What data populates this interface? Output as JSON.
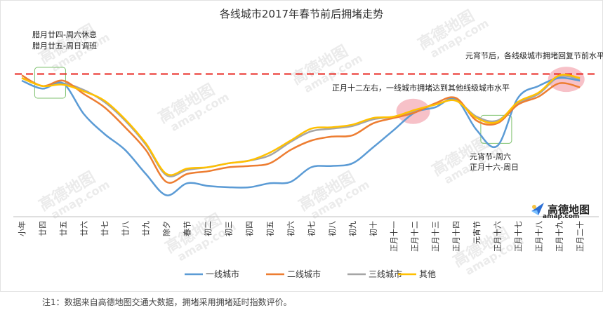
{
  "page": {
    "footnote": "注1：数据来自高德地图交通大数据，拥堵采用拥堵延时指数评价。",
    "logo_text": "高德地图",
    "logo_sub": "amap.com",
    "watermark": "高德地图",
    "watermark_sub": "amap.com"
  },
  "chart_data": {
    "type": "line",
    "title": "各线城市2017年春节前后拥堵走势",
    "xlabel": "",
    "ylabel": "",
    "ylim": [
      0,
      100
    ],
    "grid": false,
    "legend_position": "bottom",
    "categories": [
      "小年",
      "廿四",
      "廿五",
      "廿六",
      "廿七",
      "廿八",
      "廿九",
      "除夕",
      "春节",
      "初二",
      "初三",
      "初四",
      "初五",
      "初六",
      "初七",
      "初八",
      "初九",
      "初十",
      "正月十一",
      "正月十二",
      "正月十三",
      "正月十四",
      "元宵节",
      "正月十六",
      "正月十七",
      "正月十八",
      "正月十九",
      "正月二十"
    ],
    "reference_line": 95,
    "series": [
      {
        "name": "一线城市",
        "color": "#5b9bd5",
        "values": [
          90,
          84,
          88,
          65,
          50,
          38,
          20,
          4,
          13,
          11,
          10,
          10,
          13,
          14,
          25,
          26,
          28,
          40,
          53,
          66,
          70,
          76,
          53,
          41,
          77,
          86,
          92,
          90
        ]
      },
      {
        "name": "二线城市",
        "color": "#ed7d31",
        "values": [
          94,
          86,
          90,
          80,
          70,
          55,
          38,
          14,
          20,
          22,
          25,
          26,
          28,
          38,
          45,
          48,
          49,
          58,
          62,
          66,
          73,
          77,
          60,
          58,
          72,
          78,
          88,
          85
        ]
      },
      {
        "name": "三线城市",
        "color": "#a5a5a5",
        "values": [
          92,
          86,
          88,
          83,
          74,
          60,
          42,
          19,
          23,
          25,
          28,
          30,
          34,
          44,
          52,
          54,
          56,
          61,
          63,
          67,
          72,
          75,
          63,
          60,
          73,
          80,
          93,
          91
        ]
      },
      {
        "name": "其他",
        "color": "#ffc000",
        "values": [
          92,
          86,
          87,
          82,
          75,
          61,
          43,
          20,
          24,
          25,
          28,
          30,
          36,
          45,
          54,
          55,
          57,
          62,
          63,
          68,
          72,
          75,
          62,
          59,
          74,
          81,
          94,
          92
        ]
      }
    ],
    "annotations": [
      {
        "text": "腊月廿四-周六休息",
        "category_index": 1
      },
      {
        "text": "腊月廿五-周日调班",
        "category_index": 1
      },
      {
        "text": "正月十二左右，一线城市拥堵达到其他线级城市水平",
        "category_index": 19
      },
      {
        "text": "元宵节-周六",
        "category_index": 22
      },
      {
        "text": "正月十六-周日",
        "category_index": 23
      },
      {
        "text": "元宵节后，各线级城市拥堵回复节前水平",
        "category_index": 26
      }
    ]
  }
}
